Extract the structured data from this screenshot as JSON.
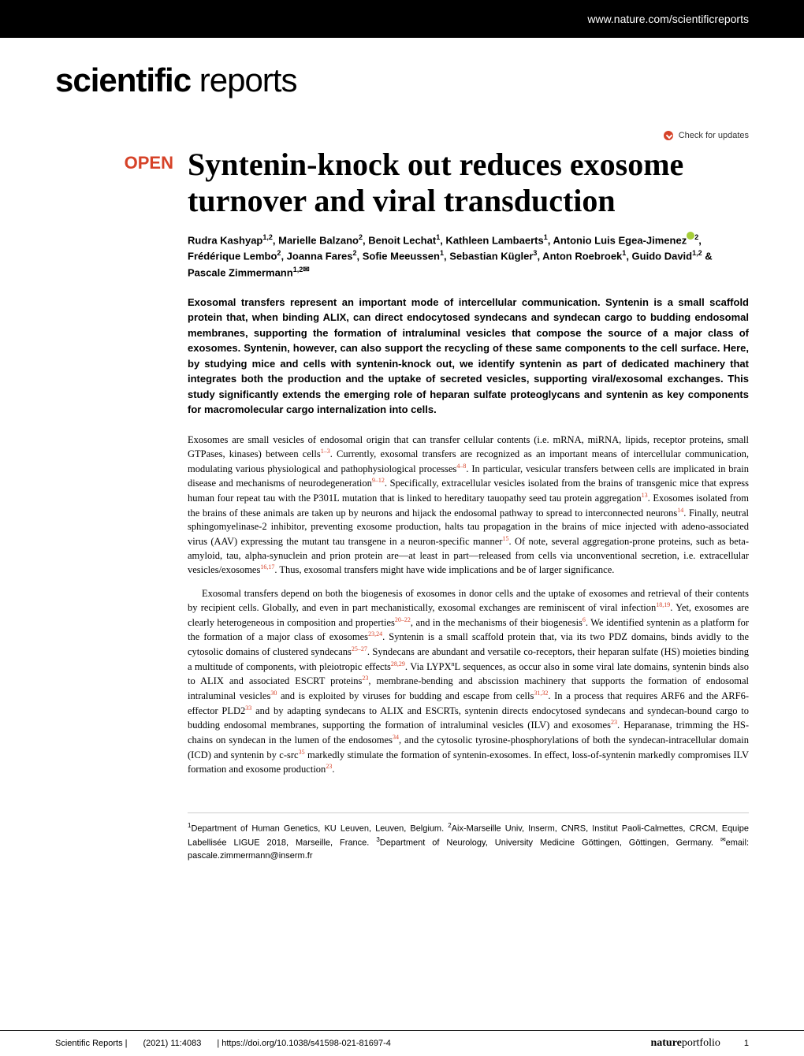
{
  "header": {
    "site_url": "www.nature.com/scientificreports"
  },
  "journal": {
    "name_bold": "scientific",
    "name_light": " reports"
  },
  "check_updates_label": "Check for updates",
  "article": {
    "open_badge": "OPEN",
    "title": "Syntenin-knock out reduces exosome turnover and viral transduction",
    "authors_html": "Rudra Kashyap<sup>1,2</sup>, Marielle Balzano<sup>2</sup>, Benoit Lechat<sup>1</sup>, Kathleen Lambaerts<sup>1</sup>, Antonio Luis Egea-Jimenez<span class='orcid-icon'></span><sup>2</sup>, Frédérique Lembo<sup>2</sup>, Joanna Fares<sup>2</sup>, Sofie Meeussen<sup>1</sup>, Sebastian Kügler<sup>3</sup>, Anton Roebroek<sup>1</sup>, Guido David<sup>1,2</sup> & Pascale Zimmermann<sup>1,2</sup><span class='envelope-icon'>✉</span>",
    "abstract": "Exosomal transfers represent an important mode of intercellular communication. Syntenin is a small scaffold protein that, when binding ALIX, can direct endocytosed syndecans and syndecan cargo to budding endosomal membranes, supporting the formation of intraluminal vesicles that compose the source of a major class of exosomes. Syntenin, however, can also support the recycling of these same components to the cell surface. Here, by studying mice and cells with syntenin-knock out, we identify syntenin as part of dedicated machinery that integrates both the production and the uptake of secreted vesicles, supporting viral/exosomal exchanges. This study significantly extends the emerging role of heparan sulfate proteoglycans and syntenin as key components for macromolecular cargo internalization into cells.",
    "paragraphs": [
      "Exosomes are small vesicles of endosomal origin that can transfer cellular contents (i.e. mRNA, miRNA, lipids, receptor proteins, small GTPases, kinases) between cells<sup>1–3</sup>. Currently, exosomal transfers are recognized as an important means of intercellular communication, modulating various physiological and pathophysiological processes<sup>4–8</sup>. In particular, vesicular transfers between cells are implicated in brain disease and mechanisms of neurodegeneration<sup>9–12</sup>. Specifically, extracellular vesicles isolated from the brains of transgenic mice that express human four repeat tau with the P301L mutation that is linked to hereditary tauopathy seed tau protein aggregation<sup>13</sup>. Exosomes isolated from the brains of these animals are taken up by neurons and hijack the endosomal pathway to spread to interconnected neurons<sup>14</sup>. Finally, neutral sphingomyelinase-2 inhibitor, preventing exosome production, halts tau propagation in the brains of mice injected with adeno-associated virus (AAV) expressing the mutant tau transgene in a neuron-specific manner<sup>15</sup>. Of note, several aggregation-prone proteins, such as beta-amyloid, tau, alpha-synuclein and prion protein are—at least in part—released from cells via unconventional secretion, i.e. extracellular vesicles/exosomes<sup>16,17</sup>. Thus, exosomal transfers might have wide implications and be of larger significance.",
      "Exosomal transfers depend on both the biogenesis of exosomes in donor cells and the uptake of exosomes and retrieval of their contents by recipient cells. Globally, and even in part mechanistically, exosomal exchanges are reminiscent of viral infection<sup>18,19</sup>. Yet, exosomes are clearly heterogeneous in composition and properties<sup>20–22</sup>, and in the mechanisms of their biogenesis<sup>6</sup>. We identified syntenin as a platform for the formation of a major class of exosomes<sup>23,24</sup>. Syntenin is a small scaffold protein that, via its two PDZ domains, binds avidly to the cytosolic domains of clustered syndecans<sup>25–27</sup>. Syndecans are abundant and versatile co-receptors, their heparan sulfate (HS) moieties binding a multitude of components, with pleiotropic effects<sup>28,29</sup>. Via LYPX<sup class='black'>n</sup>L sequences, as occur also in some viral late domains, syntenin binds also to ALIX and associated ESCRT proteins<sup>23</sup>, membrane-bending and abscission machinery that supports the formation of endosomal intraluminal vesicles<sup>30</sup> and is exploited by viruses for budding and escape from cells<sup>31,32</sup>. In a process that requires ARF6 and the ARF6-effector PLD2<sup>33</sup> and by adapting syndecans to ALIX and ESCRTs, syntenin directs endocytosed syndecans and syndecan-bound cargo to budding endosomal membranes, supporting the formation of intraluminal vesicles (ILV) and exosomes<sup>23</sup>. Heparanase, trimming the HS-chains on syndecan in the lumen of the endosomes<sup>34</sup>, and the cytosolic tyrosine-phosphorylations of both the syndecan-intracellular domain (ICD) and syntenin by c-src<sup>35</sup> markedly stimulate the formation of syntenin-exosomes. In effect, loss-of-syntenin markedly compromises ILV formation and exosome production<sup>23</sup>."
    ],
    "affiliations": "<sup>1</sup>Department of Human Genetics, KU Leuven, Leuven, Belgium. <sup>2</sup>Aix-Marseille Univ, Inserm, CNRS, Institut Paoli-Calmettes, CRCM, Equipe Labellisée LIGUE 2018, Marseille, France. <sup>3</sup>Department of Neurology, University Medicine Göttingen, Göttingen, Germany. <sup>✉</sup>email: pascale.zimmermann@inserm.fr"
  },
  "footer": {
    "journal": "Scientific Reports |",
    "citation": "(2021) 11:4083",
    "doi": "| https://doi.org/10.1038/s41598-021-81697-4",
    "publisher_bold": "nature",
    "publisher_light": "portfolio",
    "page": "1"
  },
  "colors": {
    "accent": "#d64228",
    "black": "#000000",
    "orcid": "#a6ce39"
  }
}
